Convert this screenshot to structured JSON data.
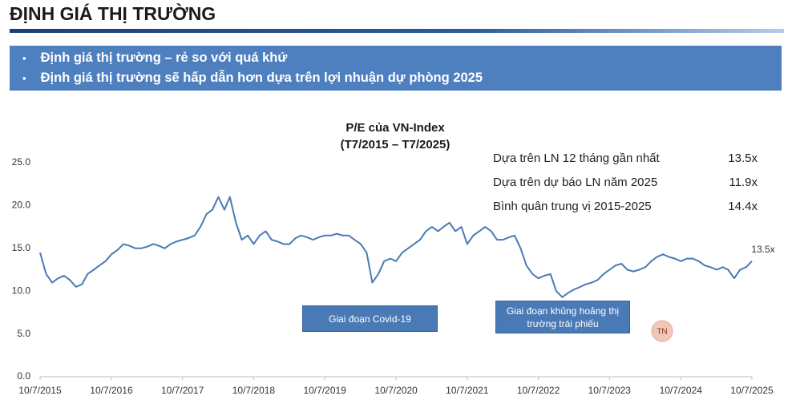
{
  "header": {
    "title": "ĐỊNH GIÁ THỊ TRƯỜNG",
    "bullets": [
      "Định giá thị trường – rẻ so với quá khứ",
      "Định giá thị trường sẽ hấp dẫn hơn dựa trên lợi nhuận dự phòng 2025"
    ]
  },
  "summary": [
    {
      "label": "Dựa trên LN 12 tháng gần nhất",
      "value": "13.5x"
    },
    {
      "label": "Dựa trên dự báo LN năm 2025",
      "value": "11.9x"
    },
    {
      "label": "Bình quân trung vị 2015-2025",
      "value": "14.4x"
    }
  ],
  "badge": "TN",
  "chart_data": {
    "type": "line",
    "title": "P/E của VN-Index",
    "subtitle": "(T7/2015 – T7/2025)",
    "x": [
      "2015-07-10",
      "2015-08-10",
      "2015-09-10",
      "2015-10-10",
      "2015-11-10",
      "2015-12-10",
      "2016-01-10",
      "2016-02-10",
      "2016-03-10",
      "2016-04-10",
      "2016-05-10",
      "2016-06-10",
      "2016-07-10",
      "2016-08-10",
      "2016-09-10",
      "2016-10-10",
      "2016-11-10",
      "2016-12-10",
      "2017-01-10",
      "2017-02-10",
      "2017-03-10",
      "2017-04-10",
      "2017-05-10",
      "2017-06-10",
      "2017-07-10",
      "2017-08-10",
      "2017-09-10",
      "2017-10-10",
      "2017-11-10",
      "2017-12-10",
      "2018-01-10",
      "2018-02-10",
      "2018-03-10",
      "2018-04-10",
      "2018-05-10",
      "2018-06-10",
      "2018-07-10",
      "2018-08-10",
      "2018-09-10",
      "2018-10-10",
      "2018-11-10",
      "2018-12-10",
      "2019-01-10",
      "2019-02-10",
      "2019-03-10",
      "2019-04-10",
      "2019-05-10",
      "2019-06-10",
      "2019-07-10",
      "2019-08-10",
      "2019-09-10",
      "2019-10-10",
      "2019-11-10",
      "2019-12-10",
      "2020-01-10",
      "2020-02-10",
      "2020-03-10",
      "2020-04-10",
      "2020-05-10",
      "2020-06-10",
      "2020-07-10",
      "2020-08-10",
      "2020-09-10",
      "2020-10-10",
      "2020-11-10",
      "2020-12-10",
      "2021-01-10",
      "2021-02-10",
      "2021-03-10",
      "2021-04-10",
      "2021-05-10",
      "2021-06-10",
      "2021-07-10",
      "2021-08-10",
      "2021-09-10",
      "2021-10-10",
      "2021-11-10",
      "2021-12-10",
      "2022-01-10",
      "2022-02-10",
      "2022-03-10",
      "2022-04-10",
      "2022-05-10",
      "2022-06-10",
      "2022-07-10",
      "2022-08-10",
      "2022-09-10",
      "2022-10-10",
      "2022-11-10",
      "2022-12-10",
      "2023-01-10",
      "2023-02-10",
      "2023-03-10",
      "2023-04-10",
      "2023-05-10",
      "2023-06-10",
      "2023-07-10",
      "2023-08-10",
      "2023-09-10",
      "2023-10-10",
      "2023-11-10",
      "2023-12-10",
      "2024-01-10",
      "2024-02-10",
      "2024-03-10",
      "2024-04-10",
      "2024-05-10",
      "2024-06-10",
      "2024-07-10",
      "2024-08-10",
      "2024-09-10",
      "2024-10-10",
      "2024-11-10",
      "2024-12-10",
      "2025-01-10",
      "2025-02-10",
      "2025-03-10",
      "2025-04-10",
      "2025-05-10",
      "2025-06-10",
      "2025-07-10"
    ],
    "series": [
      {
        "name": "P/E",
        "color": "#4a7ab5",
        "values": [
          14.5,
          12.0,
          11.0,
          11.5,
          11.8,
          11.3,
          10.5,
          10.8,
          12.0,
          12.5,
          13.0,
          13.5,
          14.3,
          14.8,
          15.5,
          15.3,
          15.0,
          15.0,
          15.2,
          15.5,
          15.3,
          15.0,
          15.5,
          15.8,
          16.0,
          16.2,
          16.5,
          17.5,
          19.0,
          19.5,
          21.0,
          19.5,
          21.0,
          18.0,
          16.0,
          16.5,
          15.5,
          16.5,
          17.0,
          16.0,
          15.8,
          15.5,
          15.5,
          16.2,
          16.5,
          16.3,
          16.0,
          16.3,
          16.5,
          16.5,
          16.7,
          16.5,
          16.5,
          16.0,
          15.5,
          14.5,
          11.0,
          12.0,
          13.5,
          13.8,
          13.5,
          14.5,
          15.0,
          15.5,
          16.0,
          17.0,
          17.5,
          17.0,
          17.5,
          18.0,
          17.0,
          17.5,
          15.5,
          16.5,
          17.0,
          17.5,
          17.0,
          16.0,
          16.0,
          16.3,
          16.5,
          15.0,
          13.0,
          12.0,
          11.5,
          11.8,
          12.0,
          10.0,
          9.3,
          9.8,
          10.2,
          10.5,
          10.8,
          11.0,
          11.3,
          12.0,
          12.5,
          13.0,
          13.2,
          12.5,
          12.3,
          12.5,
          12.8,
          13.5,
          14.0,
          14.3,
          14.0,
          13.8,
          13.5,
          13.8,
          13.8,
          13.5,
          13.0,
          12.8,
          12.5,
          12.8,
          12.5,
          11.5,
          12.5,
          12.8,
          13.5
        ]
      }
    ],
    "end_label": "13.5x",
    "annotations": [
      "Giai đoạn Covid-19",
      "Giai đoạn khủng hoảng thị trường trái phiếu"
    ],
    "xlim": [
      "2015-07-10",
      "2025-07-10"
    ],
    "xticks": [
      {
        "value": "2015-07-10",
        "label": "10/7/2015"
      },
      {
        "value": "2016-07-10",
        "label": "10/7/2016"
      },
      {
        "value": "2017-07-10",
        "label": "10/7/2017"
      },
      {
        "value": "2018-07-10",
        "label": "10/7/2018"
      },
      {
        "value": "2019-07-10",
        "label": "10/7/2019"
      },
      {
        "value": "2020-07-10",
        "label": "10/7/2020"
      },
      {
        "value": "2021-07-10",
        "label": "10/7/2021"
      },
      {
        "value": "2022-07-10",
        "label": "10/7/2022"
      },
      {
        "value": "2023-07-10",
        "label": "10/7/2023"
      },
      {
        "value": "2024-07-10",
        "label": "10/7/2024"
      },
      {
        "value": "2025-07-10",
        "label": "10/7/2025"
      }
    ],
    "ylim": [
      0,
      25
    ],
    "yticks": [
      {
        "value": 0,
        "label": "0.0"
      },
      {
        "value": 5,
        "label": "5.0"
      },
      {
        "value": 10,
        "label": "10.0"
      },
      {
        "value": 15,
        "label": "15.0"
      },
      {
        "value": 20,
        "label": "20.0"
      },
      {
        "value": 25,
        "label": "25.0"
      }
    ],
    "grid": false
  }
}
